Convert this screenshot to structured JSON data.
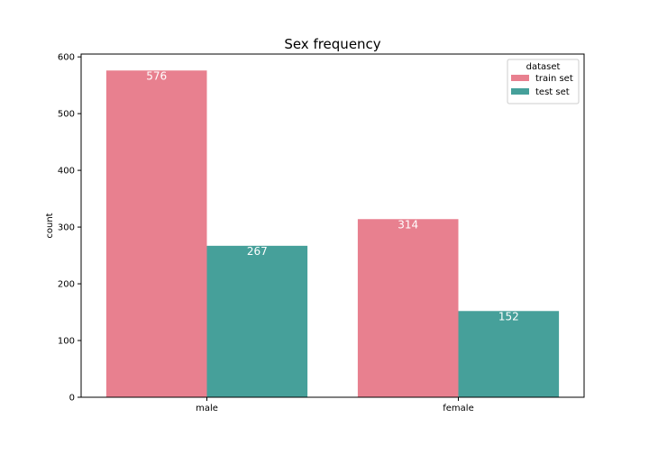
{
  "chart_data": {
    "type": "bar",
    "title": "Sex frequency",
    "xlabel": "",
    "ylabel": "count",
    "categories": [
      "male",
      "female"
    ],
    "series": [
      {
        "name": "train set",
        "values": [
          576,
          314
        ],
        "color": "#e8808f"
      },
      {
        "name": "test set",
        "values": [
          267,
          152
        ],
        "color": "#46a09a"
      }
    ],
    "ylim": [
      0,
      605
    ],
    "yticks": [
      0,
      100,
      200,
      300,
      400,
      500,
      600
    ],
    "legend": {
      "title": "dataset",
      "placement": "top-right"
    },
    "grid": false
  }
}
